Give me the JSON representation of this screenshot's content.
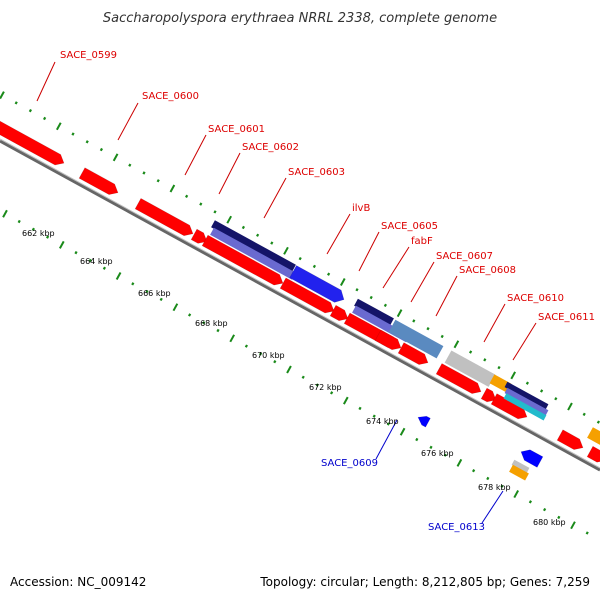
{
  "title": "Saccharopolyspora erythraea NRRL 2338, complete genome",
  "footer": {
    "accession": "Accession: NC_009142",
    "summary": "Topology: circular; Length: 8,212,805 bp; Genes: 7,259"
  },
  "colors": {
    "forward_cds": "#ff0000",
    "reverse_cds": "#0000ff",
    "label_forward": "#dd0000",
    "label_reverse": "#0000cc",
    "leader_forward": "#cc0000",
    "leader_reverse": "#0000cc",
    "tick": "#1a8a1a",
    "backbone": "#808080",
    "navy_feature": "#141468",
    "slate_feature": "#6a6ad0",
    "blue_feature": "#2222ee",
    "steel_feature": "#5a8ac0",
    "grey_feature": "#c0c0c0",
    "orange_feature": "#f5a000",
    "teal_feature": "#22bbcc"
  },
  "kbp_labels": [
    "662 kbp",
    "664 kbp",
    "666 kbp",
    "668 kbp",
    "670 kbp",
    "672 kbp",
    "674 kbp",
    "676 kbp",
    "678 kbp",
    "680 kbp"
  ],
  "gene_labels_forward": [
    "SACE_0599",
    "SACE_0600",
    "SACE_0601",
    "SACE_0602",
    "SACE_0603",
    "ilvB",
    "SACE_0605",
    "fabF",
    "SACE_0607",
    "SACE_0608",
    "SACE_0610",
    "SACE_0611"
  ],
  "gene_labels_reverse": [
    "SACE_0609",
    "SACE_0613"
  ]
}
